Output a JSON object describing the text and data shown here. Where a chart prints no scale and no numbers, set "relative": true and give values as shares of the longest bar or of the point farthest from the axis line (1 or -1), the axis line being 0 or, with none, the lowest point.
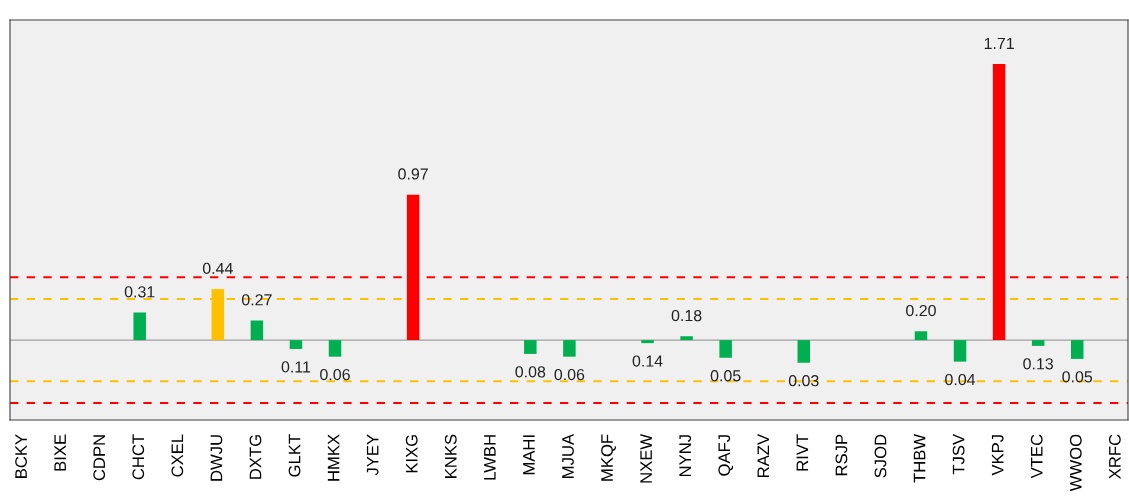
{
  "chart_data": {
    "type": "bar",
    "relative": true,
    "grid": false,
    "categories": [
      "BCKY",
      "BIXE",
      "CDPN",
      "CHCT",
      "CXEL",
      "DWJU",
      "DXTG",
      "GLKT",
      "HMKX",
      "JYEY",
      "KIXG",
      "KNKS",
      "LWBH",
      "MAHI",
      "MJUA",
      "MKQF",
      "NXEW",
      "NYNJ",
      "QAFJ",
      "RAZV",
      "RIVT",
      "RSJP",
      "SJOD",
      "THBW",
      "TJSV",
      "VKPJ",
      "VTEC",
      "WWOO",
      "XRFC"
    ],
    "values": [
      null,
      null,
      null,
      0.1,
      null,
      0.185,
      0.071,
      -0.032,
      -0.06,
      null,
      0.527,
      null,
      null,
      -0.05,
      -0.06,
      null,
      -0.011,
      0.014,
      -0.064,
      null,
      -0.082,
      null,
      null,
      0.032,
      -0.078,
      1,
      -0.021,
      -0.068,
      null
    ],
    "colors": [
      "#00b050",
      "#00b050",
      "#00b050",
      "#00b050",
      "#00b050",
      "#ffc000",
      "#00b050",
      "#00b050",
      "#00b050",
      "#00b050",
      "#ff0000",
      "#00b050",
      "#00b050",
      "#00b050",
      "#00b050",
      "#00b050",
      "#00b050",
      "#00b050",
      "#00b050",
      "#00b050",
      "#00b050",
      "#00b050",
      "#00b050",
      "#00b050",
      "#00b050",
      "#ff0000",
      "#00b050",
      "#00b050",
      "#00b050"
    ],
    "annotations": [
      {
        "text": "0.31",
        "x": "CHCT",
        "y": 0.1
      },
      {
        "text": "0.44",
        "x": "DWJU",
        "y": 0.185
      },
      {
        "text": "0.27",
        "x": "DXTG",
        "y": 0.071
      },
      {
        "text": "0.11",
        "x": "GLKT",
        "y": -0.032
      },
      {
        "text": "0.06",
        "x": "HMKX",
        "y": -0.06
      },
      {
        "text": "0.97",
        "x": "KIXG",
        "y": 0.527
      },
      {
        "text": "0.08",
        "x": "MAHI",
        "y": -0.05
      },
      {
        "text": "0.06",
        "x": "MJUA",
        "y": -0.06
      },
      {
        "text": "0.14",
        "x": "NXEW",
        "y": -0.011
      },
      {
        "text": "0.18",
        "x": "NYNJ",
        "y": 0.014
      },
      {
        "text": "0.05",
        "x": "QAFJ",
        "y": -0.064
      },
      {
        "text": "0.03",
        "x": "RIVT",
        "y": -0.082
      },
      {
        "text": "0.20",
        "x": "THBW",
        "y": 0.032
      },
      {
        "text": "0.04",
        "x": "TJSV",
        "y": -0.078
      },
      {
        "text": "1.71",
        "x": "VKPJ",
        "y": 1
      },
      {
        "text": "0.13",
        "x": "VTEC",
        "y": -0.021
      },
      {
        "text": "0.05",
        "x": "WWOO",
        "y": -0.068
      }
    ],
    "ref_lines": [
      {
        "axis": "y",
        "value": 0,
        "color": "#a0a0a0",
        "line_style": "solid"
      },
      {
        "axis": "y",
        "value": 0.228,
        "color": "#ff0000",
        "line_style": "dashed"
      },
      {
        "axis": "y",
        "value": -0.228,
        "color": "#ff0000",
        "line_style": "dashed"
      },
      {
        "axis": "y",
        "value": 0.149,
        "color": "#ffc000",
        "line_style": "dashed"
      },
      {
        "axis": "y",
        "value": -0.149,
        "color": "#ffc000",
        "line_style": "dashed"
      }
    ]
  }
}
